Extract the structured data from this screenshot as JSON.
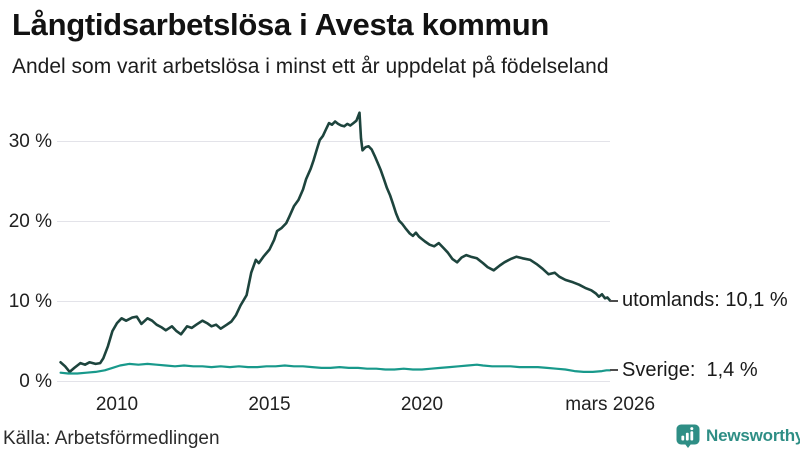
{
  "chart_data": {
    "type": "line",
    "title": "Långtidsarbetslösa i Avesta kommun",
    "subtitle": "Andel som varit arbetslösa i minst ett år uppdelat på födelseland",
    "source": "Källa: Arbetsförmedlingen",
    "grid": "horizontal-only",
    "legend_position": "end-of-line-labels",
    "ylim": [
      0,
      35
    ],
    "x_range_years": [
      2008,
      2026.3
    ],
    "y_ticks": [
      {
        "label": "0 %",
        "value": 0
      },
      {
        "label": "10 %",
        "value": 10
      },
      {
        "label": "20 %",
        "value": 20
      },
      {
        "label": "30 %",
        "value": 30
      }
    ],
    "x_ticks": [
      {
        "label": "2010",
        "x": 2010
      },
      {
        "label": "2015",
        "x": 2015
      },
      {
        "label": "2020",
        "x": 2020
      },
      {
        "label": "mars 2026",
        "x": 2026.17
      }
    ],
    "series": [
      {
        "name": "utomlands",
        "end_label": "utomlands: 10,1 %",
        "last_value": 10.1,
        "color": "#1d443d",
        "points": [
          [
            2008.15,
            2.4
          ],
          [
            2008.3,
            1.9
          ],
          [
            2008.45,
            1.2
          ],
          [
            2008.6,
            1.7
          ],
          [
            2008.8,
            2.3
          ],
          [
            2008.95,
            2.1
          ],
          [
            2009.1,
            2.4
          ],
          [
            2009.3,
            2.2
          ],
          [
            2009.45,
            2.3
          ],
          [
            2009.55,
            2.9
          ],
          [
            2009.7,
            4.4
          ],
          [
            2009.85,
            6.3
          ],
          [
            2010.0,
            7.3
          ],
          [
            2010.15,
            7.9
          ],
          [
            2010.3,
            7.6
          ],
          [
            2010.5,
            8.0
          ],
          [
            2010.65,
            8.1
          ],
          [
            2010.8,
            7.2
          ],
          [
            2011.0,
            7.9
          ],
          [
            2011.15,
            7.6
          ],
          [
            2011.3,
            7.1
          ],
          [
            2011.45,
            6.8
          ],
          [
            2011.6,
            6.4
          ],
          [
            2011.8,
            6.9
          ],
          [
            2011.95,
            6.3
          ],
          [
            2012.1,
            5.9
          ],
          [
            2012.3,
            6.9
          ],
          [
            2012.45,
            6.7
          ],
          [
            2012.6,
            7.1
          ],
          [
            2012.8,
            7.6
          ],
          [
            2012.95,
            7.3
          ],
          [
            2013.1,
            6.9
          ],
          [
            2013.25,
            7.1
          ],
          [
            2013.4,
            6.6
          ],
          [
            2013.6,
            7.1
          ],
          [
            2013.75,
            7.5
          ],
          [
            2013.9,
            8.3
          ],
          [
            2014.05,
            9.5
          ],
          [
            2014.25,
            10.8
          ],
          [
            2014.4,
            13.6
          ],
          [
            2014.55,
            15.2
          ],
          [
            2014.65,
            14.8
          ],
          [
            2014.8,
            15.6
          ],
          [
            2015.0,
            16.5
          ],
          [
            2015.15,
            17.7
          ],
          [
            2015.25,
            18.8
          ],
          [
            2015.4,
            19.2
          ],
          [
            2015.55,
            19.8
          ],
          [
            2015.65,
            20.6
          ],
          [
            2015.8,
            21.9
          ],
          [
            2015.95,
            22.7
          ],
          [
            2016.1,
            24.0
          ],
          [
            2016.2,
            25.3
          ],
          [
            2016.35,
            26.6
          ],
          [
            2016.45,
            27.7
          ],
          [
            2016.55,
            29.0
          ],
          [
            2016.65,
            30.2
          ],
          [
            2016.75,
            30.7
          ],
          [
            2016.85,
            31.5
          ],
          [
            2016.95,
            32.3
          ],
          [
            2017.05,
            32.1
          ],
          [
            2017.15,
            32.5
          ],
          [
            2017.25,
            32.2
          ],
          [
            2017.35,
            32.0
          ],
          [
            2017.45,
            31.9
          ],
          [
            2017.55,
            32.2
          ],
          [
            2017.65,
            32.0
          ],
          [
            2017.75,
            32.3
          ],
          [
            2017.85,
            32.6
          ],
          [
            2017.95,
            33.6
          ],
          [
            2018.0,
            30.4
          ],
          [
            2018.05,
            28.9
          ],
          [
            2018.15,
            29.3
          ],
          [
            2018.25,
            29.4
          ],
          [
            2018.35,
            29.0
          ],
          [
            2018.45,
            28.2
          ],
          [
            2018.55,
            27.3
          ],
          [
            2018.65,
            26.4
          ],
          [
            2018.75,
            25.3
          ],
          [
            2018.85,
            24.2
          ],
          [
            2018.95,
            23.3
          ],
          [
            2019.05,
            22.2
          ],
          [
            2019.15,
            21.0
          ],
          [
            2019.25,
            20.1
          ],
          [
            2019.35,
            19.7
          ],
          [
            2019.45,
            19.2
          ],
          [
            2019.6,
            18.5
          ],
          [
            2019.7,
            18.2
          ],
          [
            2019.8,
            18.6
          ],
          [
            2019.9,
            18.1
          ],
          [
            2020.0,
            17.8
          ],
          [
            2020.1,
            17.5
          ],
          [
            2020.25,
            17.1
          ],
          [
            2020.4,
            16.9
          ],
          [
            2020.55,
            17.3
          ],
          [
            2020.7,
            16.7
          ],
          [
            2020.85,
            16.1
          ],
          [
            2021.0,
            15.3
          ],
          [
            2021.15,
            14.9
          ],
          [
            2021.3,
            15.5
          ],
          [
            2021.45,
            15.8
          ],
          [
            2021.6,
            15.6
          ],
          [
            2021.8,
            15.4
          ],
          [
            2022.0,
            14.8
          ],
          [
            2022.15,
            14.3
          ],
          [
            2022.35,
            13.9
          ],
          [
            2022.55,
            14.5
          ],
          [
            2022.7,
            14.9
          ],
          [
            2022.9,
            15.3
          ],
          [
            2023.1,
            15.6
          ],
          [
            2023.3,
            15.4
          ],
          [
            2023.55,
            15.2
          ],
          [
            2023.75,
            14.7
          ],
          [
            2023.95,
            14.1
          ],
          [
            2024.15,
            13.4
          ],
          [
            2024.35,
            13.6
          ],
          [
            2024.5,
            13.1
          ],
          [
            2024.7,
            12.7
          ],
          [
            2024.95,
            12.4
          ],
          [
            2025.15,
            12.1
          ],
          [
            2025.35,
            11.7
          ],
          [
            2025.55,
            11.4
          ],
          [
            2025.7,
            11.0
          ],
          [
            2025.8,
            10.6
          ],
          [
            2025.9,
            10.9
          ],
          [
            2026.0,
            10.4
          ],
          [
            2026.08,
            10.5
          ],
          [
            2026.17,
            10.1
          ]
        ]
      },
      {
        "name": "Sverige",
        "end_label": "Sverige:  1,4 %",
        "last_value": 1.4,
        "color": "#18998b",
        "points": [
          [
            2008.15,
            1.1
          ],
          [
            2008.4,
            1.0
          ],
          [
            2008.7,
            1.0
          ],
          [
            2009.0,
            1.1
          ],
          [
            2009.3,
            1.2
          ],
          [
            2009.6,
            1.4
          ],
          [
            2009.85,
            1.7
          ],
          [
            2010.1,
            2.0
          ],
          [
            2010.4,
            2.2
          ],
          [
            2010.7,
            2.1
          ],
          [
            2011.0,
            2.2
          ],
          [
            2011.3,
            2.1
          ],
          [
            2011.6,
            2.0
          ],
          [
            2011.9,
            1.9
          ],
          [
            2012.2,
            2.0
          ],
          [
            2012.5,
            1.9
          ],
          [
            2012.8,
            1.9
          ],
          [
            2013.1,
            1.8
          ],
          [
            2013.4,
            1.9
          ],
          [
            2013.7,
            1.8
          ],
          [
            2014.0,
            1.9
          ],
          [
            2014.3,
            1.8
          ],
          [
            2014.6,
            1.8
          ],
          [
            2014.9,
            1.9
          ],
          [
            2015.2,
            1.9
          ],
          [
            2015.5,
            2.0
          ],
          [
            2015.8,
            1.9
          ],
          [
            2016.1,
            1.9
          ],
          [
            2016.4,
            1.8
          ],
          [
            2016.7,
            1.7
          ],
          [
            2017.0,
            1.7
          ],
          [
            2017.3,
            1.8
          ],
          [
            2017.6,
            1.7
          ],
          [
            2017.9,
            1.7
          ],
          [
            2018.2,
            1.6
          ],
          [
            2018.5,
            1.6
          ],
          [
            2018.8,
            1.5
          ],
          [
            2019.1,
            1.5
          ],
          [
            2019.4,
            1.6
          ],
          [
            2019.7,
            1.5
          ],
          [
            2020.0,
            1.5
          ],
          [
            2020.3,
            1.6
          ],
          [
            2020.6,
            1.7
          ],
          [
            2020.9,
            1.8
          ],
          [
            2021.2,
            1.9
          ],
          [
            2021.5,
            2.0
          ],
          [
            2021.8,
            2.1
          ],
          [
            2022.0,
            2.0
          ],
          [
            2022.3,
            1.9
          ],
          [
            2022.6,
            1.9
          ],
          [
            2022.9,
            1.9
          ],
          [
            2023.2,
            1.8
          ],
          [
            2023.5,
            1.8
          ],
          [
            2023.8,
            1.8
          ],
          [
            2024.1,
            1.7
          ],
          [
            2024.4,
            1.6
          ],
          [
            2024.7,
            1.5
          ],
          [
            2025.0,
            1.3
          ],
          [
            2025.3,
            1.2
          ],
          [
            2025.6,
            1.2
          ],
          [
            2025.9,
            1.3
          ],
          [
            2026.05,
            1.4
          ],
          [
            2026.17,
            1.4
          ]
        ]
      }
    ]
  },
  "branding": {
    "logo_text": "Newsworthy",
    "logo_color": "#2e8e85",
    "logo_icon": "bar-chart-speech-bubble"
  }
}
